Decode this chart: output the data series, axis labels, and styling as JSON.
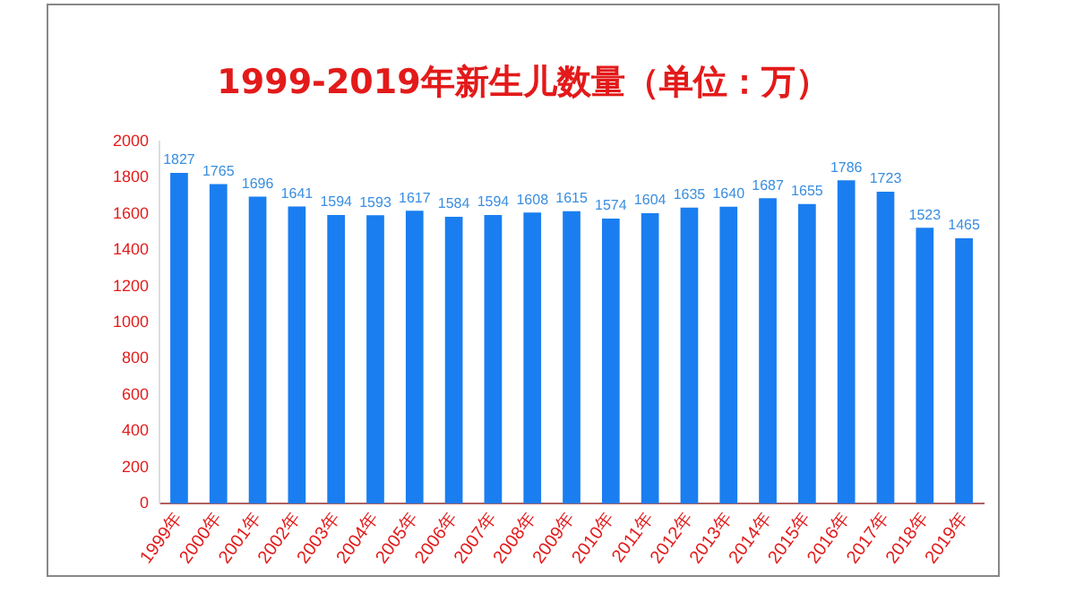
{
  "chart_data": {
    "type": "bar",
    "title": "1999-2019年新生儿数量（单位：万）",
    "categories": [
      "1999年",
      "2000年",
      "2001年",
      "2002年",
      "2003年",
      "2004年",
      "2005年",
      "2006年",
      "2007年",
      "2008年",
      "2009年",
      "2010年",
      "2011年",
      "2012年",
      "2013年",
      "2014年",
      "2015年",
      "2016年",
      "2017年",
      "2018年",
      "2019年"
    ],
    "values": [
      1827,
      1765,
      1696,
      1641,
      1594,
      1593,
      1617,
      1584,
      1594,
      1608,
      1615,
      1574,
      1604,
      1635,
      1640,
      1687,
      1655,
      1786,
      1723,
      1523,
      1465
    ],
    "color": "#1a7ef0",
    "ylim": [
      0,
      2000
    ],
    "yticks": [
      0,
      200,
      400,
      600,
      800,
      1000,
      1200,
      1400,
      1600,
      1800,
      2000
    ],
    "grid": false,
    "legend": false,
    "data_labels": true
  }
}
